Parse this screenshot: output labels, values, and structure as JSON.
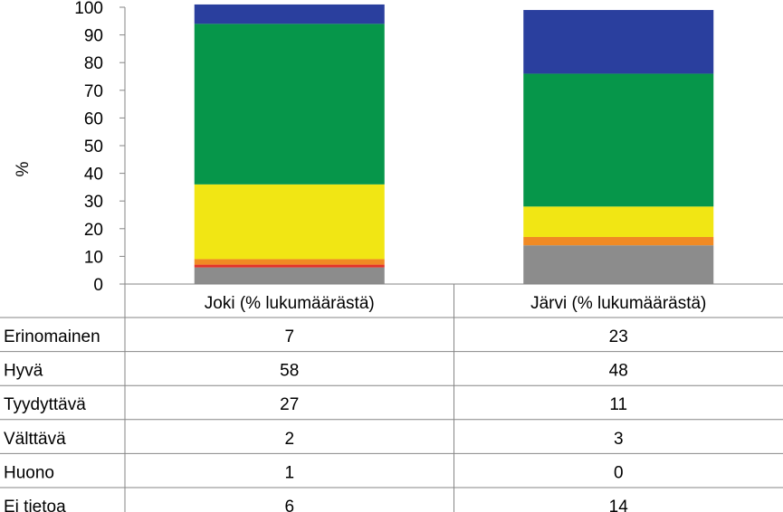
{
  "chart_data": {
    "type": "bar",
    "stacked": true,
    "ylabel": "%",
    "ylim": [
      0,
      100
    ],
    "yticks": [
      0,
      10,
      20,
      30,
      40,
      50,
      60,
      70,
      80,
      90,
      100
    ],
    "grid": false,
    "categories": [
      "Joki (% lukumäärästä)",
      "Järvi (% lukumäärästä)"
    ],
    "series": [
      {
        "name": "Ei tietoa",
        "values": [
          6,
          14
        ],
        "color": "#8c8c8c"
      },
      {
        "name": "Huono",
        "values": [
          1,
          0
        ],
        "color": "#e3342a"
      },
      {
        "name": "Välttävä",
        "values": [
          2,
          3
        ],
        "color": "#f08a24"
      },
      {
        "name": "Tyydyttävä",
        "values": [
          27,
          11
        ],
        "color": "#f1e614"
      },
      {
        "name": "Hyvä",
        "values": [
          58,
          48
        ],
        "color": "#06964a"
      },
      {
        "name": "Erinomainen",
        "values": [
          7,
          23
        ],
        "color": "#2a3f9e"
      }
    ],
    "table_row_order": [
      "Erinomainen",
      "Hyvä",
      "Tyydyttävä",
      "Välttävä",
      "Huono",
      "Ei tietoa"
    ]
  }
}
